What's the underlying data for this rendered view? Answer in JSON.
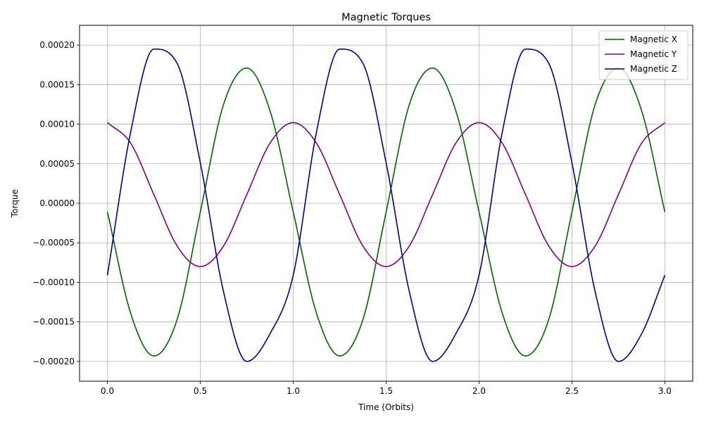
{
  "chart_data": {
    "type": "line",
    "title": "Magnetic Torques",
    "xlabel": "Time (Orbits)",
    "ylabel": "Torque",
    "xlim": [
      -0.15,
      3.15
    ],
    "ylim": [
      -0.000225,
      0.000225
    ],
    "x_ticks": [
      0.0,
      0.5,
      1.0,
      1.5,
      2.0,
      2.5,
      3.0
    ],
    "x_tick_labels": [
      "0.0",
      "0.5",
      "1.0",
      "1.5",
      "2.0",
      "2.5",
      "3.0"
    ],
    "y_ticks": [
      -0.0002,
      -0.00015,
      -0.0001,
      -5e-05,
      0.0,
      5e-05,
      0.0001,
      0.00015,
      0.0002
    ],
    "y_tick_labels": [
      "−0.00020",
      "−0.00015",
      "−0.00010",
      "−0.00005",
      "0.00000",
      "0.00005",
      "0.00010",
      "0.00015",
      "0.00020"
    ],
    "grid": true,
    "legend_position": "top-right",
    "x": [
      0.0,
      0.125,
      0.25,
      0.375,
      0.5,
      0.625,
      0.75,
      0.875,
      1.0,
      1.125,
      1.25,
      1.375,
      1.5,
      1.625,
      1.75,
      1.875,
      2.0,
      2.125,
      2.25,
      2.375,
      2.5,
      2.625,
      2.75,
      2.875,
      3.0
    ],
    "series": [
      {
        "name": "Magnetic X",
        "color": "#006400",
        "values": [
          -1.1e-05,
          -0.000139,
          -0.000193,
          -0.000147,
          -1.1e-05,
          0.000125,
          0.000171,
          0.000117,
          -1.1e-05,
          -0.000139,
          -0.000193,
          -0.000147,
          -1.1e-05,
          0.000125,
          0.000171,
          0.000117,
          -1.1e-05,
          -0.000139,
          -0.000193,
          -0.000147,
          -1.1e-05,
          0.000125,
          0.000171,
          0.000117,
          -1.1e-05
        ]
      },
      {
        "name": "Magnetic Y",
        "color": "#800080",
        "values": [
          0.000102,
          7.6e-05,
          1.1e-05,
          -5.4e-05,
          -8e-05,
          -5.4e-05,
          1.1e-05,
          7.6e-05,
          0.000102,
          7.6e-05,
          1.1e-05,
          -5.4e-05,
          -8e-05,
          -5.4e-05,
          1.1e-05,
          7.6e-05,
          0.000102,
          7.6e-05,
          1.1e-05,
          -5.4e-05,
          -8e-05,
          -5.4e-05,
          1.1e-05,
          7.6e-05,
          0.000102
        ]
      },
      {
        "name": "Magnetic Z",
        "color": "#00008B",
        "values": [
          -9.1e-05,
          9e-05,
          0.000195,
          0.000177,
          5.1e-05,
          -0.000112,
          -0.0002,
          -0.000165,
          -9.1e-05,
          9e-05,
          0.000195,
          0.000177,
          5.1e-05,
          -0.000112,
          -0.0002,
          -0.000165,
          -9.1e-05,
          9e-05,
          0.000195,
          0.000177,
          5.1e-05,
          -0.000112,
          -0.0002,
          -0.000165,
          -9.1e-05
        ]
      }
    ]
  }
}
